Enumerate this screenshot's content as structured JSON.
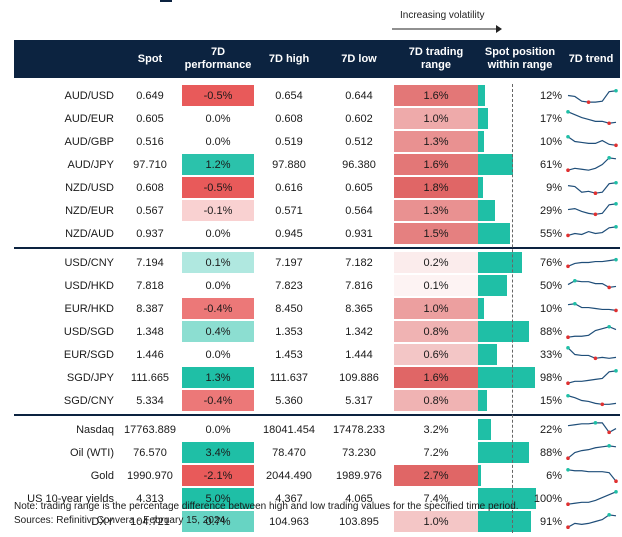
{
  "volatility_label": "Increasing volatility",
  "headers": {
    "spot": "Spot",
    "perf": "7D performance",
    "high": "7D high",
    "low": "7D low",
    "range": "7D trading range",
    "position": "Spot position within range",
    "trend": "7D trend"
  },
  "colors": {
    "header_bg": "#0c2340",
    "positive": "#1fbfa6",
    "negative": "#e85a5a",
    "range_red": "#e06666",
    "position_bar": "#1fbfa6",
    "spark_line": "#1f4e79",
    "spark_min": "#e03030",
    "spark_max": "#1fbfa6"
  },
  "chart_data": {
    "type": "table",
    "groups": [
      [
        {
          "name": "AUD/USD",
          "spot": "0.649",
          "perf": "-0.5%",
          "perf_v": -0.5,
          "high": "0.654",
          "low": "0.644",
          "range": "1.6%",
          "range_v": 1.6,
          "pos": "12%",
          "pos_v": 12,
          "trend": [
            0.5,
            0.45,
            0.2,
            0.15,
            0.15,
            0.2,
            0.7,
            0.75
          ]
        },
        {
          "name": "AUD/EUR",
          "spot": "0.605",
          "perf": "0.0%",
          "perf_v": 0.0,
          "high": "0.608",
          "low": "0.602",
          "range": "1.0%",
          "range_v": 1.0,
          "pos": "17%",
          "pos_v": 17,
          "trend": [
            0.85,
            0.7,
            0.55,
            0.45,
            0.35,
            0.35,
            0.25,
            0.3
          ]
        },
        {
          "name": "AUD/GBP",
          "spot": "0.516",
          "perf": "0.0%",
          "perf_v": 0.0,
          "high": "0.519",
          "low": "0.512",
          "range": "1.3%",
          "range_v": 1.3,
          "pos": "10%",
          "pos_v": 10,
          "trend": [
            0.75,
            0.5,
            0.45,
            0.4,
            0.4,
            0.55,
            0.35,
            0.3
          ]
        },
        {
          "name": "AUD/JPY",
          "spot": "97.710",
          "perf": "1.2%",
          "perf_v": 1.2,
          "high": "97.880",
          "low": "96.380",
          "range": "1.6%",
          "range_v": 1.6,
          "pos": "61%",
          "pos_v": 61,
          "trend": [
            0.2,
            0.3,
            0.25,
            0.2,
            0.3,
            0.5,
            0.85,
            0.8
          ]
        },
        {
          "name": "NZD/USD",
          "spot": "0.608",
          "perf": "-0.5%",
          "perf_v": -0.5,
          "high": "0.616",
          "low": "0.605",
          "range": "1.8%",
          "range_v": 1.8,
          "pos": "9%",
          "pos_v": 9,
          "trend": [
            0.6,
            0.55,
            0.25,
            0.3,
            0.2,
            0.25,
            0.7,
            0.75
          ]
        },
        {
          "name": "NZD/EUR",
          "spot": "0.567",
          "perf": "-0.1%",
          "perf_v": -0.1,
          "high": "0.571",
          "low": "0.564",
          "range": "1.3%",
          "range_v": 1.3,
          "pos": "29%",
          "pos_v": 29,
          "trend": [
            0.55,
            0.6,
            0.45,
            0.35,
            0.3,
            0.35,
            0.8,
            0.85
          ]
        },
        {
          "name": "NZD/AUD",
          "spot": "0.937",
          "perf": "0.0%",
          "perf_v": 0.0,
          "high": "0.945",
          "low": "0.931",
          "range": "1.5%",
          "range_v": 1.5,
          "pos": "55%",
          "pos_v": 55,
          "trend": [
            0.4,
            0.5,
            0.45,
            0.6,
            0.5,
            0.55,
            0.8,
            0.85
          ]
        }
      ],
      [
        {
          "name": "USD/CNY",
          "spot": "7.194",
          "perf": "0.1%",
          "perf_v": 0.1,
          "high": "7.197",
          "low": "7.182",
          "range": "0.2%",
          "range_v": 0.2,
          "pos": "76%",
          "pos_v": 76,
          "trend": [
            0.3,
            0.45,
            0.5,
            0.5,
            0.55,
            0.55,
            0.6,
            0.65
          ]
        },
        {
          "name": "USD/HKD",
          "spot": "7.818",
          "perf": "0.0%",
          "perf_v": 0.0,
          "high": "7.823",
          "low": "7.816",
          "range": "0.1%",
          "range_v": 0.1,
          "pos": "50%",
          "pos_v": 50,
          "trend": [
            0.55,
            0.75,
            0.7,
            0.7,
            0.6,
            0.6,
            0.4,
            0.45
          ]
        },
        {
          "name": "EUR/HKD",
          "spot": "8.387",
          "perf": "-0.4%",
          "perf_v": -0.4,
          "high": "8.450",
          "low": "8.365",
          "range": "1.0%",
          "range_v": 1.0,
          "pos": "10%",
          "pos_v": 10,
          "trend": [
            0.7,
            0.75,
            0.55,
            0.55,
            0.5,
            0.45,
            0.45,
            0.4
          ]
        },
        {
          "name": "USD/SGD",
          "spot": "1.348",
          "perf": "0.4%",
          "perf_v": 0.4,
          "high": "1.353",
          "low": "1.342",
          "range": "0.8%",
          "range_v": 0.8,
          "pos": "88%",
          "pos_v": 88,
          "trend": [
            0.2,
            0.25,
            0.25,
            0.3,
            0.55,
            0.65,
            0.75,
            0.6
          ]
        },
        {
          "name": "EUR/SGD",
          "spot": "1.446",
          "perf": "0.0%",
          "perf_v": 0.0,
          "high": "1.453",
          "low": "1.444",
          "range": "0.6%",
          "range_v": 0.6,
          "pos": "33%",
          "pos_v": 33,
          "trend": [
            0.85,
            0.5,
            0.45,
            0.45,
            0.3,
            0.35,
            0.3,
            0.35
          ]
        },
        {
          "name": "SGD/JPY",
          "spot": "111.665",
          "perf": "1.3%",
          "perf_v": 1.3,
          "high": "111.637",
          "low": "109.886",
          "range": "1.6%",
          "range_v": 1.6,
          "pos": "98%",
          "pos_v": 98,
          "trend": [
            0.2,
            0.3,
            0.3,
            0.35,
            0.4,
            0.45,
            0.8,
            0.85
          ]
        },
        {
          "name": "SGD/CNY",
          "spot": "5.334",
          "perf": "-0.4%",
          "perf_v": -0.4,
          "high": "5.360",
          "low": "5.317",
          "range": "0.8%",
          "range_v": 0.8,
          "pos": "15%",
          "pos_v": 15,
          "trend": [
            0.75,
            0.65,
            0.5,
            0.45,
            0.35,
            0.3,
            0.3,
            0.35
          ]
        }
      ],
      [
        {
          "name": "Nasdaq",
          "spot": "17763.889",
          "perf": "0.0%",
          "perf_v": 0.0,
          "high": "18041.454",
          "low": "17478.233",
          "range": "3.2%",
          "range_v": 3.2,
          "pos": "22%",
          "pos_v": 22,
          "trend": [
            0.7,
            0.75,
            0.8,
            0.8,
            0.85,
            0.85,
            0.35,
            0.55
          ]
        },
        {
          "name": "Oil (WTI)",
          "spot": "76.570",
          "perf": "3.4%",
          "perf_v": 3.4,
          "high": "78.470",
          "low": "73.230",
          "range": "7.2%",
          "range_v": 7.2,
          "pos": "88%",
          "pos_v": 88,
          "trend": [
            0.2,
            0.5,
            0.6,
            0.65,
            0.75,
            0.8,
            0.85,
            0.8
          ]
        },
        {
          "name": "Gold",
          "spot": "1990.970",
          "perf": "-2.1%",
          "perf_v": -2.1,
          "high": "2044.490",
          "low": "1989.976",
          "range": "2.7%",
          "range_v": 2.7,
          "pos": "6%",
          "pos_v": 6,
          "trend": [
            0.8,
            0.75,
            0.75,
            0.7,
            0.7,
            0.7,
            0.65,
            0.2
          ]
        },
        {
          "name": "US 10-year yields",
          "spot": "4.313",
          "perf": "5.0%",
          "perf_v": 5.0,
          "high": "4.367",
          "low": "4.065",
          "range": "7.4%",
          "range_v": 7.4,
          "pos": "100%",
          "pos_v": 100,
          "trend": [
            0.2,
            0.25,
            0.3,
            0.3,
            0.4,
            0.55,
            0.7,
            0.85
          ]
        },
        {
          "name": "DXY",
          "spot": "104.721",
          "perf": "0.7%",
          "perf_v": 0.7,
          "high": "104.963",
          "low": "103.895",
          "range": "1.0%",
          "range_v": 1.0,
          "pos": "91%",
          "pos_v": 91,
          "trend": [
            0.2,
            0.4,
            0.35,
            0.4,
            0.5,
            0.6,
            0.85,
            0.8
          ]
        }
      ]
    ]
  },
  "footnote": "Note: trading range is the percentage difference between high and low trading values for the specified time period.",
  "sources": "Sources: Refinitiv, Convera - February 15, 2024"
}
